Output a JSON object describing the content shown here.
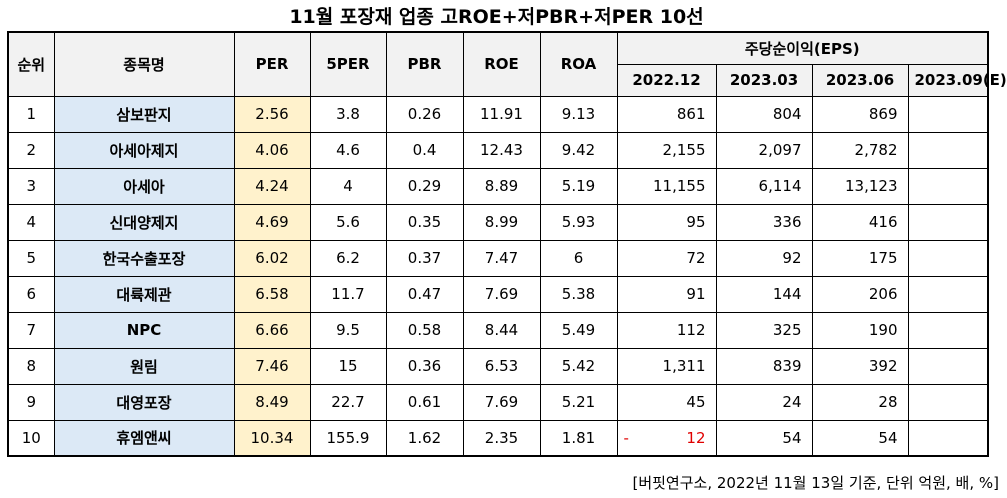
{
  "title": "11월  포장재 업종 고ROE+저PBR+저PER 10선",
  "headers": {
    "rank": "순위",
    "name": "종목명",
    "per": "PER",
    "fper": "5PER",
    "pbr": "PBR",
    "roe": "ROE",
    "roa": "ROA",
    "eps_group": "주당순이익(EPS)",
    "eps_periods": [
      "2022.12",
      "2023.03",
      "2023.06",
      "2023.09(E)"
    ]
  },
  "rows": [
    {
      "rank": "1",
      "name": "삼보판지",
      "per": "2.56",
      "fper": "3.8",
      "pbr": "0.26",
      "roe": "11.91",
      "roa": "9.13",
      "eps": [
        "861",
        "804",
        "869",
        ""
      ]
    },
    {
      "rank": "2",
      "name": "아세아제지",
      "per": "4.06",
      "fper": "4.6",
      "pbr": "0.4",
      "roe": "12.43",
      "roa": "9.42",
      "eps": [
        "2,155",
        "2,097",
        "2,782",
        ""
      ]
    },
    {
      "rank": "3",
      "name": "아세아",
      "per": "4.24",
      "fper": "4",
      "pbr": "0.29",
      "roe": "8.89",
      "roa": "5.19",
      "eps": [
        "11,155",
        "6,114",
        "13,123",
        ""
      ]
    },
    {
      "rank": "4",
      "name": "신대양제지",
      "per": "4.69",
      "fper": "5.6",
      "pbr": "0.35",
      "roe": "8.99",
      "roa": "5.93",
      "eps": [
        "95",
        "336",
        "416",
        ""
      ]
    },
    {
      "rank": "5",
      "name": "한국수출포장",
      "per": "6.02",
      "fper": "6.2",
      "pbr": "0.37",
      "roe": "7.47",
      "roa": "6",
      "eps": [
        "72",
        "92",
        "175",
        ""
      ]
    },
    {
      "rank": "6",
      "name": "대륙제관",
      "per": "6.58",
      "fper": "11.7",
      "pbr": "0.47",
      "roe": "7.69",
      "roa": "5.38",
      "eps": [
        "91",
        "144",
        "206",
        ""
      ]
    },
    {
      "rank": "7",
      "name": "NPC",
      "per": "6.66",
      "fper": "9.5",
      "pbr": "0.58",
      "roe": "8.44",
      "roa": "5.49",
      "eps": [
        "112",
        "325",
        "190",
        ""
      ]
    },
    {
      "rank": "8",
      "name": "원림",
      "per": "7.46",
      "fper": "15",
      "pbr": "0.36",
      "roe": "6.53",
      "roa": "5.42",
      "eps": [
        "1,311",
        "839",
        "392",
        ""
      ]
    },
    {
      "rank": "9",
      "name": "대영포장",
      "per": "8.49",
      "fper": "22.7",
      "pbr": "0.61",
      "roe": "7.69",
      "roa": "5.21",
      "eps": [
        "45",
        "24",
        "28",
        ""
      ]
    },
    {
      "rank": "10",
      "name": "휴엠앤씨",
      "per": "10.34",
      "fper": "155.9",
      "pbr": "1.62",
      "roe": "2.35",
      "roa": "1.81",
      "eps": [
        "-12",
        "54",
        "54",
        ""
      ]
    }
  ],
  "footer": "[버핏연구소, 2022년 11월 13일 기준, 단위 억원, 배, %]",
  "colors": {
    "name_bg": "#dce9f6",
    "per_bg": "#fff2cc",
    "header_bg": "#f2f2f2",
    "negative": "#e00000"
  }
}
